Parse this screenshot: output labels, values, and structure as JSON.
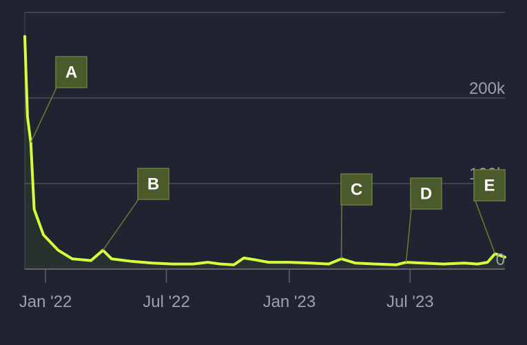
{
  "chart_data": {
    "type": "area",
    "title": "",
    "xlabel": "",
    "ylabel": "",
    "ylim": [
      0,
      300000
    ],
    "xlim": [
      "2021-12-01",
      "2023-11-20"
    ],
    "grid": true,
    "y_ticks": [
      {
        "value": 0,
        "label": "0"
      },
      {
        "value": 100000,
        "label": "100k"
      },
      {
        "value": 200000,
        "label": "200k"
      }
    ],
    "x_ticks": [
      {
        "value": "2022-01-01",
        "label": "Jan '22"
      },
      {
        "value": "2022-07-01",
        "label": "Jul '22"
      },
      {
        "value": "2023-01-01",
        "label": "Jan '23"
      },
      {
        "value": "2023-07-01",
        "label": "Jul '23"
      }
    ],
    "series": [
      {
        "name": "",
        "color": "#d4ff3a",
        "points": [
          [
            "2021-12-01",
            272000
          ],
          [
            "2021-12-05",
            178000
          ],
          [
            "2021-12-10",
            148000
          ],
          [
            "2021-12-15",
            70000
          ],
          [
            "2021-12-21",
            57000
          ],
          [
            "2021-12-29",
            40000
          ],
          [
            "2022-01-20",
            22000
          ],
          [
            "2022-02-10",
            12000
          ],
          [
            "2022-03-10",
            10000
          ],
          [
            "2022-03-28",
            22000
          ],
          [
            "2022-04-10",
            12000
          ],
          [
            "2022-05-10",
            9000
          ],
          [
            "2022-06-10",
            7000
          ],
          [
            "2022-07-10",
            6000
          ],
          [
            "2022-08-10",
            6000
          ],
          [
            "2022-09-01",
            8000
          ],
          [
            "2022-09-20",
            6000
          ],
          [
            "2022-10-10",
            5000
          ],
          [
            "2022-10-25",
            13000
          ],
          [
            "2022-11-10",
            11000
          ],
          [
            "2022-12-01",
            8000
          ],
          [
            "2023-01-01",
            8000
          ],
          [
            "2023-02-01",
            7000
          ],
          [
            "2023-03-01",
            6000
          ],
          [
            "2023-03-20",
            12000
          ],
          [
            "2023-04-10",
            7000
          ],
          [
            "2023-05-10",
            6000
          ],
          [
            "2023-06-10",
            5000
          ],
          [
            "2023-06-25",
            8000
          ],
          [
            "2023-07-20",
            7000
          ],
          [
            "2023-08-20",
            6000
          ],
          [
            "2023-09-20",
            7000
          ],
          [
            "2023-10-10",
            6000
          ],
          [
            "2023-10-25",
            8000
          ],
          [
            "2023-11-05",
            18000
          ],
          [
            "2023-11-20",
            14000
          ]
        ]
      }
    ],
    "annotations": [
      {
        "label": "A",
        "date": "2021-12-10"
      },
      {
        "label": "B",
        "date": "2022-03-28"
      },
      {
        "label": "C",
        "date": "2023-03-20"
      },
      {
        "label": "D",
        "date": "2023-06-25"
      },
      {
        "label": "E",
        "date": "2023-11-05"
      }
    ],
    "colors": {
      "background": "#1f2430",
      "line": "#d4ff3a",
      "grid": "#4a4f5c",
      "tick_text": "#9aa0ac",
      "annotation_box": "#4a5a2a",
      "annotation_border": "#6b7d3a",
      "annotation_text": "#ffffff"
    }
  }
}
